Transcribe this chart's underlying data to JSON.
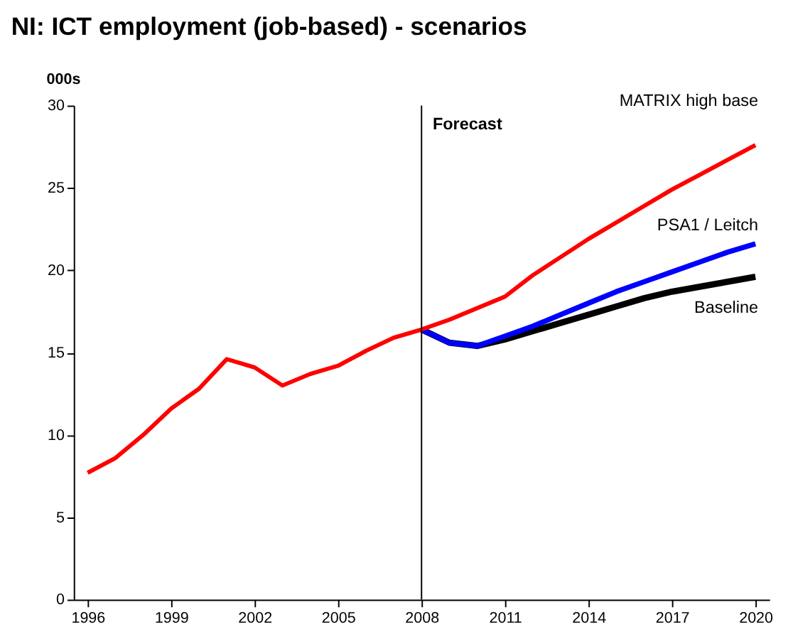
{
  "chart_data": {
    "type": "line",
    "title": "NI: ICT employment (job-based) - scenarios",
    "ylabel": "000s",
    "xlim": [
      1995.5,
      2020.5
    ],
    "xticks": [
      1996,
      1999,
      2002,
      2005,
      2008,
      2011,
      2014,
      2017,
      2020
    ],
    "ylim": [
      0,
      30
    ],
    "yticks": [
      0,
      5,
      10,
      15,
      20,
      25,
      30
    ],
    "grid": false,
    "legend": false,
    "line_style": "solid",
    "marker": "none",
    "ref_lines": [
      {
        "axis": "x",
        "value": 2008,
        "label": "Forecast",
        "color": "#000000"
      }
    ],
    "series": [
      {
        "name": "Baseline",
        "color": "#000000",
        "x": [
          2008,
          2009,
          2010,
          2011,
          2012,
          2013,
          2014,
          2015,
          2016,
          2017,
          2018,
          2019,
          2020
        ],
        "values": [
          16.4,
          15.6,
          15.4,
          15.8,
          16.3,
          16.8,
          17.3,
          17.8,
          18.3,
          18.7,
          19.0,
          19.3,
          19.6
        ]
      },
      {
        "name": "PSA1 / Leitch",
        "color": "#0000ff",
        "x": [
          2008,
          2009,
          2010,
          2011,
          2012,
          2013,
          2014,
          2015,
          2016,
          2017,
          2018,
          2019,
          2020
        ],
        "values": [
          16.4,
          15.6,
          15.4,
          16.0,
          16.6,
          17.3,
          18.0,
          18.7,
          19.3,
          19.9,
          20.5,
          21.1,
          21.6
        ]
      },
      {
        "name": "MATRIX high base",
        "color": "#ff0000",
        "x": [
          1996,
          1997,
          1998,
          1999,
          2000,
          2001,
          2002,
          2003,
          2004,
          2005,
          2006,
          2007,
          2008,
          2009,
          2010,
          2011,
          2012,
          2013,
          2014,
          2015,
          2016,
          2017,
          2018,
          2019,
          2020
        ],
        "values": [
          7.7,
          8.6,
          10.0,
          11.6,
          12.8,
          14.6,
          14.1,
          13.0,
          13.7,
          14.2,
          15.1,
          15.9,
          16.4,
          17.0,
          17.7,
          18.4,
          19.7,
          20.8,
          21.9,
          22.9,
          23.9,
          24.9,
          25.8,
          26.7,
          27.6
        ]
      }
    ]
  }
}
